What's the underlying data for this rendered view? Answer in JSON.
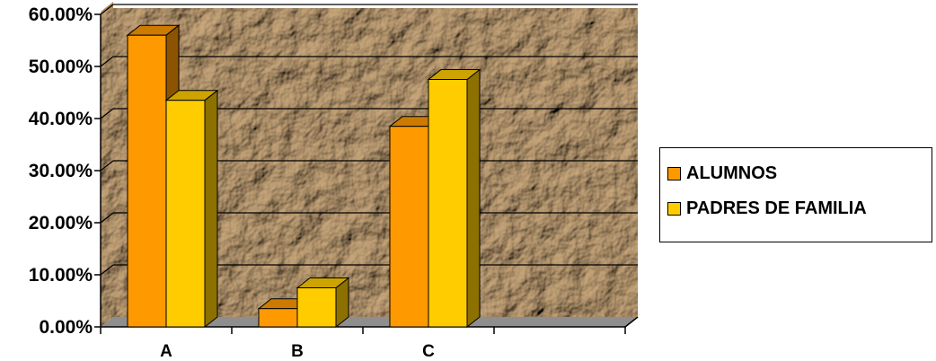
{
  "chart_data": {
    "type": "bar",
    "categories": [
      "A",
      "B",
      "C",
      ""
    ],
    "series": [
      {
        "name": "ALUMNOS",
        "values": [
          56.0,
          3.5,
          38.5,
          null
        ],
        "color": "#FF9900"
      },
      {
        "name": "PADRES DE FAMILIA",
        "values": [
          43.5,
          7.5,
          47.5,
          null
        ],
        "color": "#FFCC00"
      }
    ],
    "y_ticks": [
      "0.00%",
      "10.00%",
      "20.00%",
      "30.00%",
      "40.00%",
      "50.00%",
      "60.00%"
    ],
    "ylim": [
      0,
      60
    ],
    "grid": true,
    "three_d": true,
    "legend_position": "right",
    "plot_background": "crumpled brown paper texture"
  }
}
